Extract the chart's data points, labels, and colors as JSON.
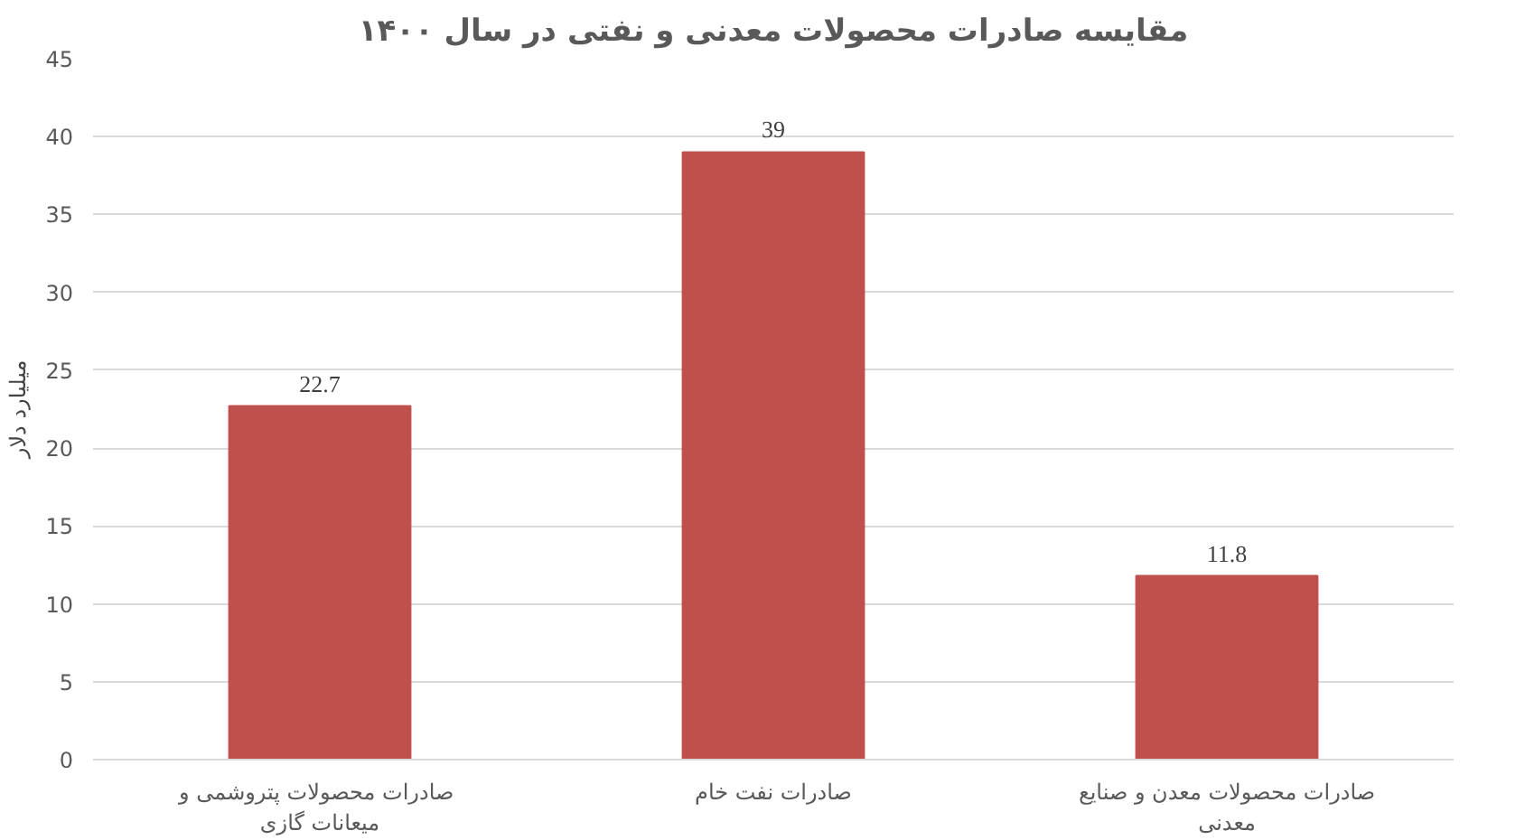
{
  "chart_data": {
    "type": "bar",
    "title": "مقایسه صادرات محصولات معدنی و نفتی در سال ۱۴۰۰",
    "ylabel": "میلیارد دلار",
    "categories": [
      "صادرات  محصولات پتروشمی و میعانات گازی",
      "صادرات نفت خام",
      "صادرات محصولات معدن و صنایع معدنی"
    ],
    "values": [
      22.7,
      39,
      11.8
    ],
    "color": "#c0504d",
    "data_labels": true,
    "ylim": [
      0,
      45
    ],
    "yticks": [
      0,
      5,
      10,
      15,
      20,
      25,
      30,
      35,
      40,
      45
    ],
    "grid": "y"
  }
}
